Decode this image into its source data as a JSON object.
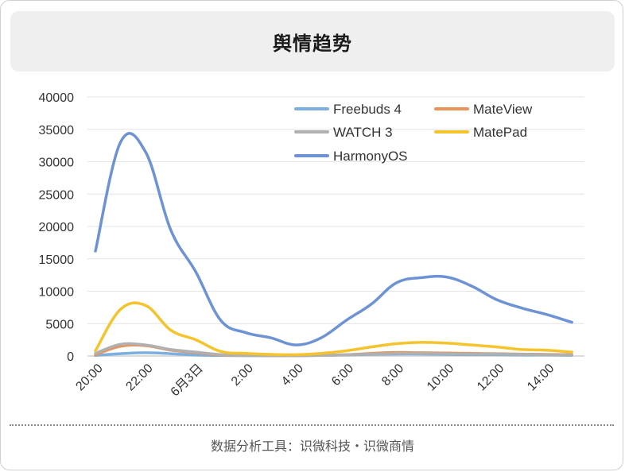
{
  "header": {
    "title": "舆情趋势"
  },
  "footer": {
    "text": "数据分析工具：识微科技・识微商情"
  },
  "chart_data": {
    "type": "line",
    "title": "舆情趋势",
    "xlabel": "",
    "ylabel": "",
    "ylim": [
      0,
      40000
    ],
    "y_ticks": [
      "0",
      "5000",
      "10000",
      "15000",
      "20000",
      "25000",
      "30000",
      "35000",
      "40000"
    ],
    "x_tick_labels": [
      "20:00",
      "22:00",
      "6月3日",
      "2:00",
      "4:00",
      "6:00",
      "8:00",
      "10:00",
      "12:00",
      "14:00"
    ],
    "x_tick_hours": [
      0,
      2,
      4,
      6,
      8,
      10,
      12,
      14,
      16,
      18
    ],
    "x_range_hours": [
      0,
      19.5
    ],
    "grid": "horizontal",
    "legend_position": "top-right",
    "x": [
      0,
      1,
      2,
      3,
      4,
      5,
      6,
      7,
      8,
      9,
      10,
      11,
      12,
      13,
      14,
      15,
      16,
      17,
      18,
      19
    ],
    "series": [
      {
        "name": "Freebuds 4",
        "color": "#7bafe0",
        "values": [
          100,
          350,
          500,
          350,
          150,
          80,
          50,
          50,
          50,
          100,
          150,
          250,
          300,
          300,
          250,
          200,
          200,
          150,
          150,
          100
        ]
      },
      {
        "name": "MateView",
        "color": "#e8935a",
        "values": [
          200,
          1500,
          1600,
          900,
          500,
          150,
          80,
          50,
          50,
          100,
          200,
          400,
          550,
          500,
          450,
          400,
          350,
          300,
          250,
          200
        ]
      },
      {
        "name": "WATCH 3",
        "color": "#b0b0b0",
        "values": [
          400,
          1800,
          1700,
          1000,
          600,
          200,
          100,
          60,
          50,
          100,
          200,
          300,
          400,
          400,
          350,
          300,
          300,
          250,
          200,
          150
        ]
      },
      {
        "name": "MatePad",
        "color": "#f5c32c",
        "values": [
          800,
          7200,
          7800,
          4000,
          2500,
          700,
          400,
          250,
          200,
          400,
          800,
          1400,
          1900,
          2100,
          2000,
          1700,
          1400,
          1000,
          900,
          600
        ]
      },
      {
        "name": "HarmonyOS",
        "color": "#6e93d4",
        "values": [
          16200,
          33000,
          31500,
          19500,
          13000,
          5500,
          3600,
          2800,
          1700,
          2800,
          5500,
          8000,
          11300,
          12100,
          12200,
          10800,
          8700,
          7400,
          6400,
          5200
        ]
      }
    ]
  }
}
